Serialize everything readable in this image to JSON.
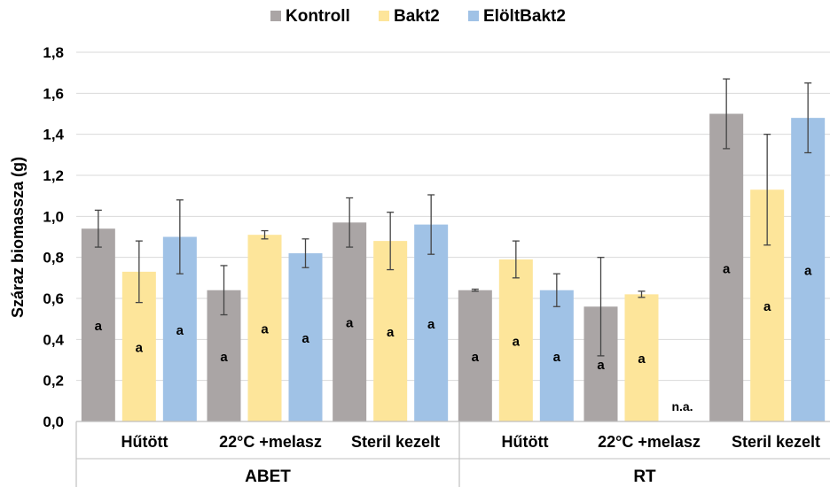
{
  "chart_data": {
    "type": "bar",
    "title": "",
    "ylabel": "Száraz biomassza (g)",
    "ylim": [
      0,
      1.8
    ],
    "yticks": [
      "0,0",
      "0,2",
      "0,4",
      "0,6",
      "0,8",
      "1,0",
      "1,2",
      "1,4",
      "1,6",
      "1,8"
    ],
    "grid": true,
    "legend_position": "top-center",
    "groups": [
      {
        "name": "ABET",
        "categories": [
          "Hűtött",
          "22°C +melasz",
          "Steril kezelt"
        ]
      },
      {
        "name": "RT",
        "categories": [
          "Hűtött",
          "22°C +melasz",
          "Steril kezelt"
        ]
      }
    ],
    "categories": [
      "Hűtött",
      "22°C +melasz",
      "Steril kezelt",
      "Hűtött",
      "22°C +melasz",
      "Steril kezelt"
    ],
    "series": [
      {
        "name": "Kontroll",
        "color": "#aaa5a5",
        "values": [
          0.94,
          0.64,
          0.97,
          0.64,
          0.56,
          1.5
        ],
        "errors": [
          0.09,
          0.12,
          0.12,
          0.005,
          0.24,
          0.17
        ],
        "labels": [
          "a",
          "a",
          "a",
          "a",
          "a",
          "a"
        ]
      },
      {
        "name": "Bakt2",
        "color": "#fde59a",
        "values": [
          0.73,
          0.91,
          0.88,
          0.79,
          0.62,
          1.13
        ],
        "errors": [
          0.15,
          0.02,
          0.14,
          0.09,
          0.015,
          0.27
        ],
        "labels": [
          "a",
          "a",
          "a",
          "a",
          "a",
          "a"
        ]
      },
      {
        "name": "ElöltBakt2",
        "color": "#a0c2e6",
        "values": [
          0.9,
          0.82,
          0.96,
          0.64,
          null,
          1.48
        ],
        "errors": [
          0.18,
          0.07,
          0.145,
          0.08,
          null,
          0.17
        ],
        "labels": [
          "a",
          "a",
          "a",
          "a",
          "n.a.",
          "a"
        ]
      }
    ]
  }
}
